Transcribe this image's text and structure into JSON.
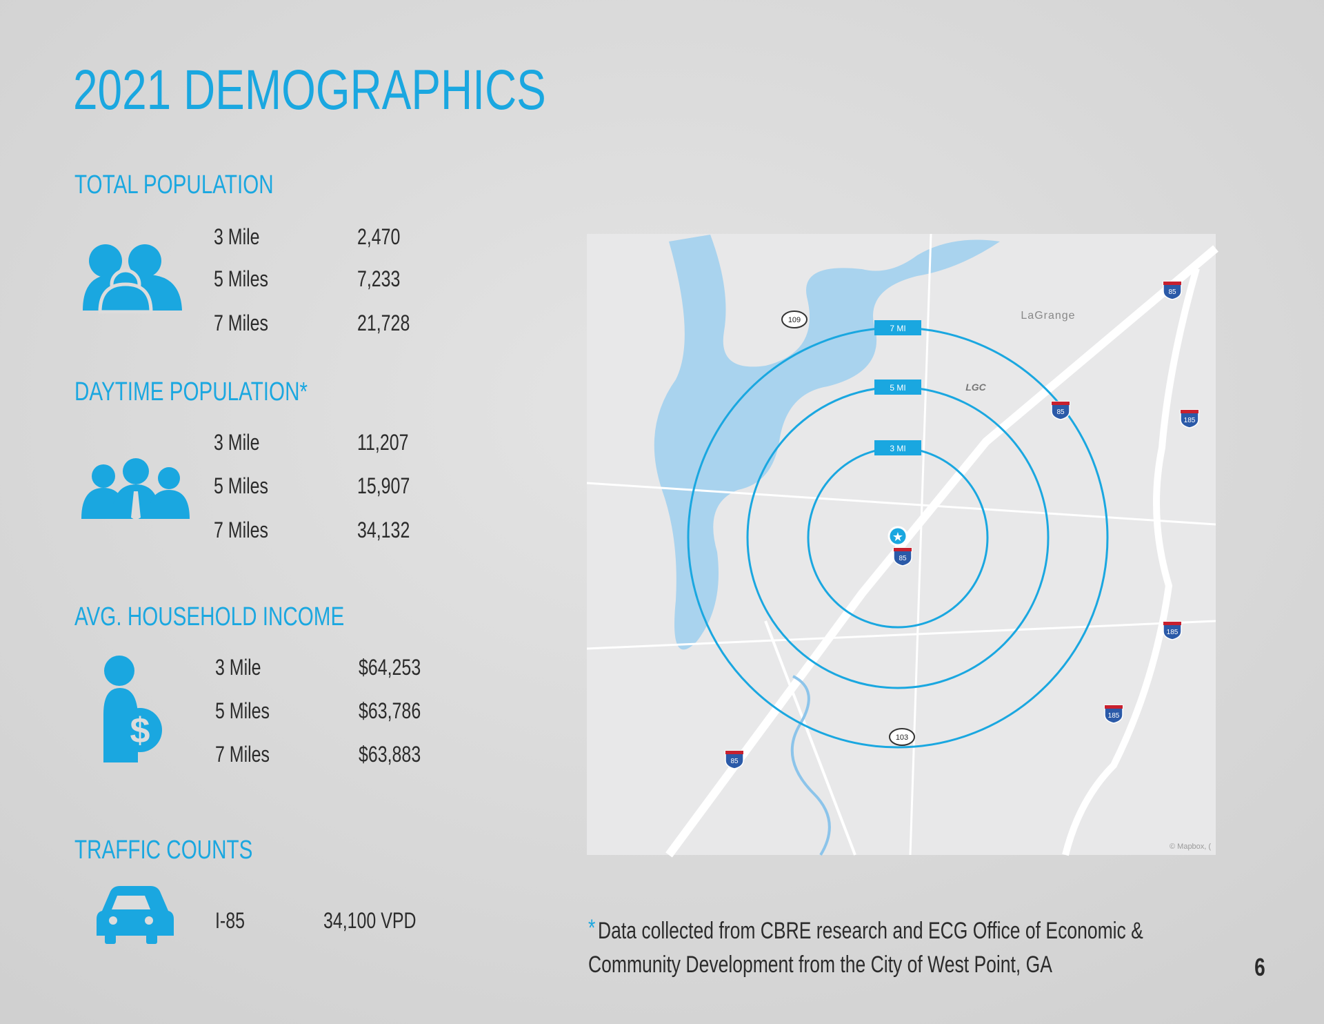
{
  "title": "2021 DEMOGRAPHICS",
  "sections": [
    {
      "heading": "TOTAL POPULATION",
      "rows": [
        [
          "3 Mile",
          "2,470"
        ],
        [
          "5 Miles",
          "7,233"
        ],
        [
          "7 Miles",
          "21,728"
        ]
      ]
    },
    {
      "heading": "DAYTIME POPULATION*",
      "rows": [
        [
          "3 Mile",
          "11,207"
        ],
        [
          "5 Miles",
          "15,907"
        ],
        [
          "7 Miles",
          "34,132"
        ]
      ]
    },
    {
      "heading": "AVG. HOUSEHOLD INCOME",
      "rows": [
        [
          "3 Mile",
          "$64,253"
        ],
        [
          "5 Miles",
          "$63,786"
        ],
        [
          "7 Miles",
          "$63,883"
        ]
      ]
    },
    {
      "heading": "TRAFFIC COUNTS",
      "rows": [
        [
          "I-85",
          "34,100 VPD"
        ]
      ]
    }
  ],
  "map": {
    "rings": [
      "7 MI",
      "5 MI",
      "3 MI"
    ],
    "city": "LaGrange",
    "airport": "LGC",
    "routes": [
      "109",
      "103"
    ],
    "interstates": [
      "85",
      "85",
      "85",
      "85",
      "185",
      "185",
      "185"
    ],
    "credit": "© Mapbox, ("
  },
  "footnote": {
    "marker": "*",
    "lines": [
      "Data collected from CBRE research and ECG Office of Economic &",
      "Community Development from the City of West Point, GA"
    ]
  },
  "page_number": "6"
}
